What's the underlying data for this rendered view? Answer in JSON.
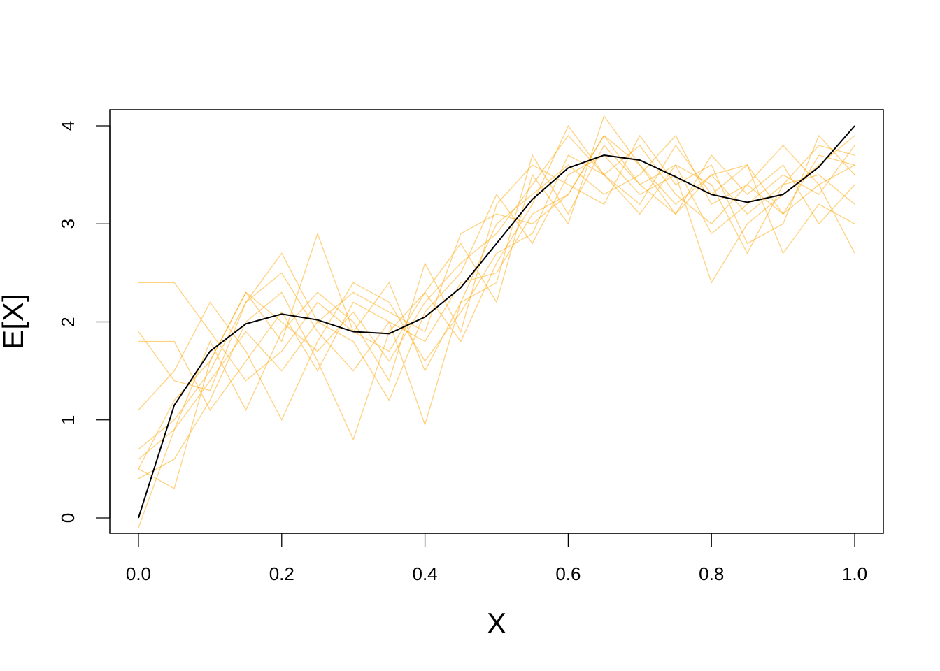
{
  "chart_data": {
    "type": "line",
    "x_label": "X",
    "y_label": "E[X]",
    "x": [
      0,
      0.05,
      0.1,
      0.15,
      0.2,
      0.25,
      0.3,
      0.35,
      0.4,
      0.45,
      0.5,
      0.55,
      0.6,
      0.65,
      0.7,
      0.75,
      0.8,
      0.85,
      0.9,
      0.95,
      1.0
    ],
    "series": [
      {
        "color": "#ffa50080",
        "values": [
          0.5,
          1.2,
          1.6,
          2.3,
          2.0,
          1.7,
          2.1,
          1.6,
          2.2,
          2.6,
          2.9,
          3.4,
          3.9,
          3.5,
          3.8,
          3.3,
          3.0,
          3.4,
          3.1,
          3.7,
          3.6
        ]
      },
      {
        "color": "#ffa50080",
        "values": [
          1.9,
          1.4,
          1.3,
          2.2,
          2.5,
          1.9,
          1.5,
          2.0,
          1.8,
          2.4,
          2.5,
          3.1,
          3.3,
          3.9,
          3.4,
          3.6,
          2.9,
          3.2,
          3.5,
          3.3,
          3.8
        ]
      },
      {
        "color": "#ffa50080",
        "values": [
          0.6,
          0.9,
          1.8,
          1.1,
          1.9,
          2.3,
          2.0,
          1.4,
          2.6,
          1.9,
          3.2,
          3.6,
          3.4,
          3.2,
          3.9,
          3.4,
          3.6,
          2.8,
          3.0,
          3.9,
          3.5
        ]
      },
      {
        "color": "#ffa50080",
        "values": [
          1.1,
          1.5,
          2.2,
          1.7,
          1.0,
          1.8,
          2.4,
          2.2,
          1.6,
          2.1,
          2.7,
          2.9,
          3.7,
          3.5,
          3.2,
          3.8,
          3.3,
          3.6,
          2.7,
          3.2,
          3.0
        ]
      },
      {
        "color": "#ffa50080",
        "values": [
          0.4,
          0.6,
          1.2,
          2.0,
          2.3,
          1.6,
          0.8,
          1.9,
          2.3,
          2.8,
          2.2,
          3.5,
          3.0,
          4.1,
          3.6,
          3.1,
          3.5,
          3.1,
          3.4,
          3.5,
          3.2
        ]
      },
      {
        "color": "#ffa50080",
        "values": [
          2.4,
          2.4,
          1.9,
          1.4,
          1.7,
          2.2,
          1.9,
          2.4,
          1.5,
          2.2,
          3.0,
          3.3,
          3.6,
          3.3,
          3.5,
          3.9,
          3.2,
          3.4,
          3.8,
          3.4,
          2.7
        ]
      },
      {
        "color": "#ffa50080",
        "values": [
          0.7,
          1.0,
          1.5,
          2.2,
          2.7,
          2.0,
          1.8,
          1.2,
          2.1,
          2.5,
          3.3,
          2.8,
          3.5,
          3.7,
          3.3,
          3.5,
          2.4,
          3.0,
          3.3,
          3.6,
          3.9
        ]
      },
      {
        "color": "#ffa50080",
        "values": [
          1.8,
          1.8,
          1.1,
          1.6,
          2.1,
          1.5,
          2.2,
          2.0,
          0.95,
          2.2,
          2.4,
          3.7,
          3.1,
          3.8,
          3.4,
          3.1,
          3.7,
          3.3,
          3.6,
          3.0,
          3.4
        ]
      },
      {
        "color": "#ffa50080",
        "values": [
          0.5,
          0.3,
          1.6,
          2.3,
          1.8,
          2.9,
          1.9,
          1.7,
          2.3,
          1.8,
          2.6,
          3.2,
          4.0,
          3.5,
          3.1,
          3.6,
          3.4,
          2.7,
          3.4,
          3.8,
          3.7
        ]
      },
      {
        "color": "#ffa50080",
        "values": [
          -0.1,
          0.9,
          1.4,
          1.9,
          1.5,
          2.0,
          2.3,
          2.1,
          1.9,
          2.9,
          3.1,
          3.0,
          3.3,
          3.9,
          3.6,
          3.2,
          3.5,
          3.6,
          3.1,
          3.4,
          3.6
        ]
      },
      {
        "color": "#000000",
        "values": [
          0,
          1.15,
          1.7,
          1.98,
          2.08,
          2.02,
          1.9,
          1.88,
          2.05,
          2.35,
          2.8,
          3.25,
          3.57,
          3.7,
          3.65,
          3.48,
          3.3,
          3.22,
          3.3,
          3.58,
          4.0
        ]
      }
    ],
    "xlim": [
      -0.04,
      1.04
    ],
    "ylim": [
      -0.157,
      4.164
    ],
    "xticks": [
      {
        "value": 0,
        "label": "0.0"
      },
      {
        "value": 0.2,
        "label": "0.2"
      },
      {
        "value": 0.4,
        "label": "0.4"
      },
      {
        "value": 0.6,
        "label": "0.6"
      },
      {
        "value": 0.8,
        "label": "0.8"
      },
      {
        "value": 1.0,
        "label": "1.0"
      }
    ],
    "yticks": [
      0,
      1,
      2,
      3,
      4
    ]
  }
}
